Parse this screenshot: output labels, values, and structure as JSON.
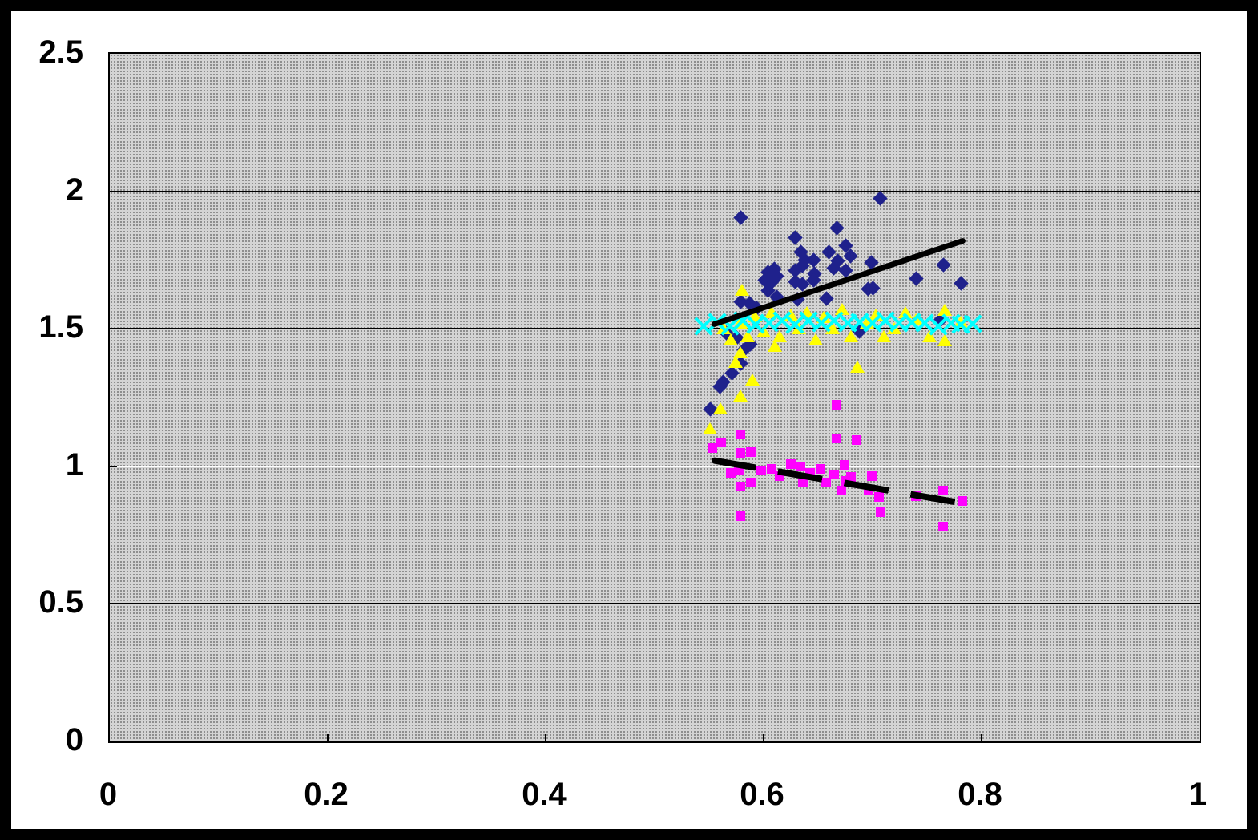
{
  "chart_data": {
    "type": "scatter",
    "title": "",
    "xlabel": "",
    "ylabel": "",
    "xlim": [
      0,
      1
    ],
    "ylim": [
      0,
      2.5
    ],
    "x_ticks": [
      {
        "value": 0,
        "label": "0"
      },
      {
        "value": 0.2,
        "label": "0.2"
      },
      {
        "value": 0.4,
        "label": "0.4"
      },
      {
        "value": 0.6,
        "label": "0.6"
      },
      {
        "value": 0.8,
        "label": "0.8"
      },
      {
        "value": 1,
        "label": "1"
      }
    ],
    "y_ticks": [
      {
        "value": 0,
        "label": "0"
      },
      {
        "value": 0.5,
        "label": "0.5"
      },
      {
        "value": 1,
        "label": "1"
      },
      {
        "value": 1.5,
        "label": "1.5"
      },
      {
        "value": 2,
        "label": "2"
      },
      {
        "value": 2.5,
        "label": "2.5"
      }
    ],
    "grid": "horizontal",
    "legend": "none",
    "colors": {
      "plot_bg": "#D4D4D4",
      "plot_dot": "#8E8E8E",
      "frame": "#000000",
      "canvas": "#FFFFFF",
      "trendline": "#000000"
    },
    "series": [
      {
        "name": "navy-diamond-series",
        "marker": "diamond",
        "color": "#1F218C",
        "points": [
          [
            0.579,
            1.903
          ],
          [
            0.707,
            1.973
          ],
          [
            0.667,
            1.865
          ],
          [
            0.629,
            1.83
          ],
          [
            0.675,
            1.801
          ],
          [
            0.634,
            1.78
          ],
          [
            0.66,
            1.78
          ],
          [
            0.638,
            1.751
          ],
          [
            0.646,
            1.751
          ],
          [
            0.668,
            1.748
          ],
          [
            0.68,
            1.763
          ],
          [
            0.699,
            1.742
          ],
          [
            0.61,
            1.719
          ],
          [
            0.629,
            1.713
          ],
          [
            0.636,
            1.728
          ],
          [
            0.647,
            1.699
          ],
          [
            0.664,
            1.722
          ],
          [
            0.675,
            1.713
          ],
          [
            0.765,
            1.731
          ],
          [
            0.74,
            1.684
          ],
          [
            0.781,
            1.664
          ],
          [
            0.7,
            1.649
          ],
          [
            0.604,
            1.705
          ],
          [
            0.612,
            1.69
          ],
          [
            0.601,
            1.678
          ],
          [
            0.608,
            1.67
          ],
          [
            0.629,
            1.67
          ],
          [
            0.636,
            1.661
          ],
          [
            0.646,
            1.678
          ],
          [
            0.604,
            1.64
          ],
          [
            0.612,
            1.617
          ],
          [
            0.631,
            1.606
          ],
          [
            0.658,
            1.611
          ],
          [
            0.579,
            1.597
          ],
          [
            0.587,
            1.591
          ],
          [
            0.594,
            1.576
          ],
          [
            0.696,
            1.646
          ],
          [
            0.763,
            1.533
          ],
          [
            0.566,
            1.486
          ],
          [
            0.575,
            1.466
          ],
          [
            0.588,
            1.444
          ],
          [
            0.582,
            1.422
          ],
          [
            0.579,
            1.373
          ],
          [
            0.571,
            1.34
          ],
          [
            0.563,
            1.306
          ],
          [
            0.56,
            1.288
          ],
          [
            0.551,
            1.209
          ],
          [
            0.688,
            1.489
          ]
        ]
      },
      {
        "name": "yellow-triangle-series",
        "marker": "triangle",
        "color": "#FFFF00",
        "points": [
          [
            0.551,
            1.136
          ],
          [
            0.56,
            1.209
          ],
          [
            0.579,
            1.256
          ],
          [
            0.59,
            1.314
          ],
          [
            0.574,
            1.378
          ],
          [
            0.579,
            1.413
          ],
          [
            0.61,
            1.437
          ],
          [
            0.58,
            1.64
          ],
          [
            0.563,
            1.5
          ],
          [
            0.57,
            1.46
          ],
          [
            0.579,
            1.52
          ],
          [
            0.585,
            1.47
          ],
          [
            0.592,
            1.545
          ],
          [
            0.6,
            1.49
          ],
          [
            0.607,
            1.56
          ],
          [
            0.615,
            1.47
          ],
          [
            0.625,
            1.55
          ],
          [
            0.632,
            1.5
          ],
          [
            0.64,
            1.56
          ],
          [
            0.648,
            1.46
          ],
          [
            0.655,
            1.54
          ],
          [
            0.663,
            1.5
          ],
          [
            0.672,
            1.57
          ],
          [
            0.68,
            1.47
          ],
          [
            0.686,
            1.36
          ],
          [
            0.695,
            1.52
          ],
          [
            0.703,
            1.55
          ],
          [
            0.71,
            1.47
          ],
          [
            0.72,
            1.5
          ],
          [
            0.73,
            1.56
          ],
          [
            0.74,
            1.532
          ],
          [
            0.752,
            1.47
          ],
          [
            0.766,
            1.567
          ],
          [
            0.766,
            1.456
          ],
          [
            0.781,
            1.523
          ]
        ]
      },
      {
        "name": "magenta-square-series",
        "marker": "square",
        "color": "#FF00FF",
        "points": [
          [
            0.553,
            1.066
          ],
          [
            0.561,
            1.087
          ],
          [
            0.579,
            1.116
          ],
          [
            0.579,
            1.049
          ],
          [
            0.588,
            1.052
          ],
          [
            0.57,
            0.976
          ],
          [
            0.577,
            0.985
          ],
          [
            0.579,
            0.927
          ],
          [
            0.588,
            0.941
          ],
          [
            0.598,
            0.985
          ],
          [
            0.607,
            0.991
          ],
          [
            0.615,
            0.964
          ],
          [
            0.625,
            1.008
          ],
          [
            0.634,
            1.0
          ],
          [
            0.636,
            0.941
          ],
          [
            0.643,
            0.976
          ],
          [
            0.652,
            0.991
          ],
          [
            0.657,
            0.941
          ],
          [
            0.665,
            0.97
          ],
          [
            0.674,
            1.005
          ],
          [
            0.676,
            0.947
          ],
          [
            0.671,
            0.912
          ],
          [
            0.579,
            0.819
          ],
          [
            0.667,
            1.224
          ],
          [
            0.667,
            1.101
          ],
          [
            0.685,
            1.096
          ],
          [
            0.699,
            0.965
          ],
          [
            0.68,
            0.962
          ],
          [
            0.696,
            0.912
          ],
          [
            0.706,
            0.889
          ],
          [
            0.707,
            0.834
          ],
          [
            0.74,
            0.892
          ],
          [
            0.765,
            0.912
          ],
          [
            0.782,
            0.874
          ],
          [
            0.765,
            0.781
          ]
        ]
      },
      {
        "name": "cyan-x-series",
        "marker": "x",
        "color": "#00FFFF",
        "points": [
          [
            0.545,
            1.51
          ],
          [
            0.557,
            1.525
          ],
          [
            0.569,
            1.51
          ],
          [
            0.581,
            1.53
          ],
          [
            0.593,
            1.515
          ],
          [
            0.605,
            1.52
          ],
          [
            0.617,
            1.53
          ],
          [
            0.629,
            1.515
          ],
          [
            0.641,
            1.53
          ],
          [
            0.653,
            1.52
          ],
          [
            0.665,
            1.53
          ],
          [
            0.677,
            1.52
          ],
          [
            0.688,
            1.525
          ],
          [
            0.7,
            1.52
          ],
          [
            0.712,
            1.53
          ],
          [
            0.724,
            1.52
          ],
          [
            0.736,
            1.525
          ],
          [
            0.748,
            1.52
          ],
          [
            0.76,
            1.51
          ],
          [
            0.772,
            1.52
          ],
          [
            0.781,
            1.515
          ],
          [
            0.792,
            1.517
          ]
        ]
      }
    ],
    "trendlines": [
      {
        "name": "rising-solid-trendline",
        "style": "solid",
        "color": "#000000",
        "from": [
          0.552,
          1.515
        ],
        "to": [
          0.785,
          1.824
        ]
      },
      {
        "name": "falling-dashed-trendline",
        "style": "dashed",
        "color": "#000000",
        "from": [
          0.552,
          1.023
        ],
        "to": [
          0.787,
          0.863
        ]
      }
    ]
  }
}
